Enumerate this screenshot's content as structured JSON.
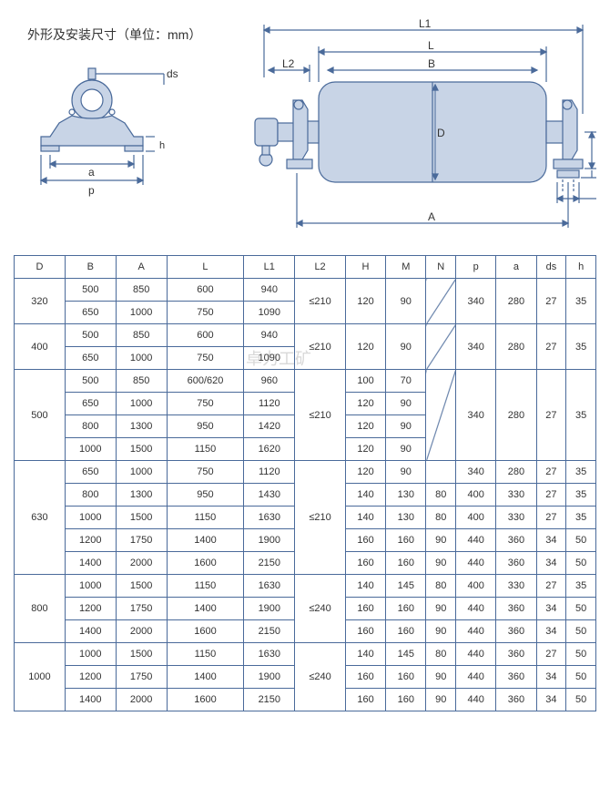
{
  "title": "外形及安装尺寸（单位：mm）",
  "diagram": {
    "left_labels": {
      "ds": "ds",
      "a": "a",
      "p": "p",
      "h": "h"
    },
    "right_labels": {
      "L1": "L1",
      "L": "L",
      "B": "B",
      "L2": "L2",
      "D": "D",
      "H": "H",
      "N": "N",
      "M": "M",
      "A": "A"
    },
    "stroke_color": "#4a6a9a",
    "fill_color": "#c8d4e6",
    "light_fill": "#e0e6f0"
  },
  "table": {
    "headers": [
      "D",
      "B",
      "A",
      "L",
      "L1",
      "L2",
      "H",
      "M",
      "N",
      "p",
      "a",
      "ds",
      "h"
    ],
    "groups": [
      {
        "D": "320",
        "rows": [
          {
            "B": "500",
            "A": "850",
            "L": "600",
            "L1": "940"
          },
          {
            "B": "650",
            "A": "1000",
            "L": "750",
            "L1": "1090"
          }
        ],
        "L2": "≤210",
        "H": "120",
        "M": "90",
        "N": "diag",
        "p": "340",
        "a": "280",
        "ds": "27",
        "h": "35"
      },
      {
        "D": "400",
        "rows": [
          {
            "B": "500",
            "A": "850",
            "L": "600",
            "L1": "940"
          },
          {
            "B": "650",
            "A": "1000",
            "L": "750",
            "L1": "1090"
          }
        ],
        "L2": "≤210",
        "H": "120",
        "M": "90",
        "N": "diag",
        "p": "340",
        "a": "280",
        "ds": "27",
        "h": "35"
      },
      {
        "D": "500",
        "rows": [
          {
            "B": "500",
            "A": "850",
            "L": "600/620",
            "L1": "960",
            "H": "100",
            "M": "70"
          },
          {
            "B": "650",
            "A": "1000",
            "L": "750",
            "L1": "1120",
            "H": "120",
            "M": "90"
          },
          {
            "B": "800",
            "A": "1300",
            "L": "950",
            "L1": "1420",
            "H": "120",
            "M": "90"
          },
          {
            "B": "1000",
            "A": "1500",
            "L": "1150",
            "L1": "1620",
            "H": "120",
            "M": "90"
          }
        ],
        "L2": "≤210",
        "N": "diag",
        "p": "340",
        "a": "280",
        "ds": "27",
        "h": "35"
      },
      {
        "D": "630",
        "rows": [
          {
            "B": "650",
            "A": "1000",
            "L": "750",
            "L1": "1120",
            "H": "120",
            "M": "90",
            "N": "",
            "p": "340",
            "a": "280",
            "ds": "27",
            "h": "35"
          },
          {
            "B": "800",
            "A": "1300",
            "L": "950",
            "L1": "1430",
            "H": "140",
            "M": "130",
            "N": "80",
            "p": "400",
            "a": "330",
            "ds": "27",
            "h": "35"
          },
          {
            "B": "1000",
            "A": "1500",
            "L": "1150",
            "L1": "1630",
            "H": "140",
            "M": "130",
            "N": "80",
            "p": "400",
            "a": "330",
            "ds": "27",
            "h": "35"
          },
          {
            "B": "1200",
            "A": "1750",
            "L": "1400",
            "L1": "1900",
            "H": "160",
            "M": "160",
            "N": "90",
            "p": "440",
            "a": "360",
            "ds": "34",
            "h": "50"
          },
          {
            "B": "1400",
            "A": "2000",
            "L": "1600",
            "L1": "2150",
            "H": "160",
            "M": "160",
            "N": "90",
            "p": "440",
            "a": "360",
            "ds": "34",
            "h": "50"
          }
        ],
        "L2": "≤210"
      },
      {
        "D": "800",
        "rows": [
          {
            "B": "1000",
            "A": "1500",
            "L": "1150",
            "L1": "1630",
            "H": "140",
            "M": "145",
            "N": "80",
            "p": "400",
            "a": "330",
            "ds": "27",
            "h": "35"
          },
          {
            "B": "1200",
            "A": "1750",
            "L": "1400",
            "L1": "1900",
            "H": "160",
            "M": "160",
            "N": "90",
            "p": "440",
            "a": "360",
            "ds": "34",
            "h": "50"
          },
          {
            "B": "1400",
            "A": "2000",
            "L": "1600",
            "L1": "2150",
            "H": "160",
            "M": "160",
            "N": "90",
            "p": "440",
            "a": "360",
            "ds": "34",
            "h": "50"
          }
        ],
        "L2": "≤240"
      },
      {
        "D": "1000",
        "rows": [
          {
            "B": "1000",
            "A": "1500",
            "L": "1150",
            "L1": "1630",
            "H": "140",
            "M": "145",
            "N": "80",
            "p": "440",
            "a": "360",
            "ds": "27",
            "h": "50"
          },
          {
            "B": "1200",
            "A": "1750",
            "L": "1400",
            "L1": "1900",
            "H": "160",
            "M": "160",
            "N": "90",
            "p": "440",
            "a": "360",
            "ds": "34",
            "h": "50"
          },
          {
            "B": "1400",
            "A": "2000",
            "L": "1600",
            "L1": "2150",
            "H": "160",
            "M": "160",
            "N": "90",
            "p": "440",
            "a": "360",
            "ds": "34",
            "h": "50"
          }
        ],
        "L2": "≤240"
      }
    ]
  },
  "watermark": "卓力工矿"
}
